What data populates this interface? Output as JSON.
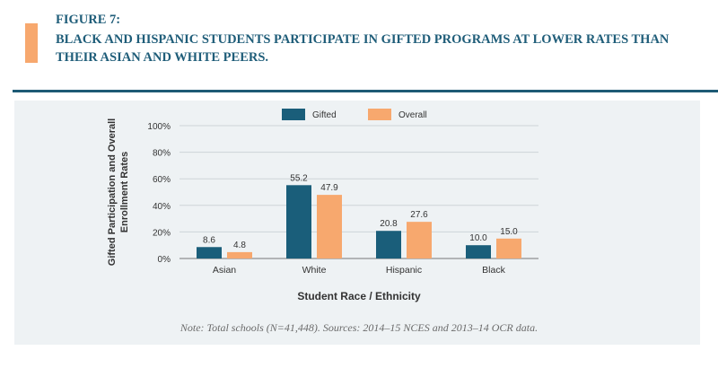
{
  "figure": {
    "label": "FIGURE 7:",
    "title": "BLACK AND HISPANIC STUDENTS PARTICIPATE IN GIFTED PROGRAMS AT LOWER RATES THAN THEIR ASIAN AND WHITE PEERS.",
    "note": "Note: Total schools (N=41,448). Sources: 2014–15 NCES and 2013–14 OCR data.",
    "accent_color": "#f7a86e",
    "title_color": "#1f5d79"
  },
  "chart_data": {
    "type": "bar",
    "categories": [
      "Asian",
      "White",
      "Hispanic",
      "Black"
    ],
    "series": [
      {
        "name": "Gifted",
        "values": [
          8.6,
          55.2,
          20.8,
          10.0
        ],
        "labels": [
          "8.6",
          "55.2",
          "20.8",
          "10.0"
        ],
        "color": "#1a5e7a"
      },
      {
        "name": "Overall",
        "values": [
          4.8,
          47.9,
          27.6,
          15.0
        ],
        "labels": [
          "4.8",
          "47.9",
          "27.6",
          "15.0"
        ],
        "color": "#f7a86e"
      }
    ],
    "xlabel": "Student Race / Ethnicity",
    "ylabel": [
      "Gifted Participation and Overall",
      "Enrollment Rates"
    ],
    "ylim": [
      0,
      100
    ],
    "yticks": [
      "0%",
      "20%",
      "40%",
      "60%",
      "80%",
      "100%"
    ],
    "legend_position": "top-center",
    "grid": true
  }
}
